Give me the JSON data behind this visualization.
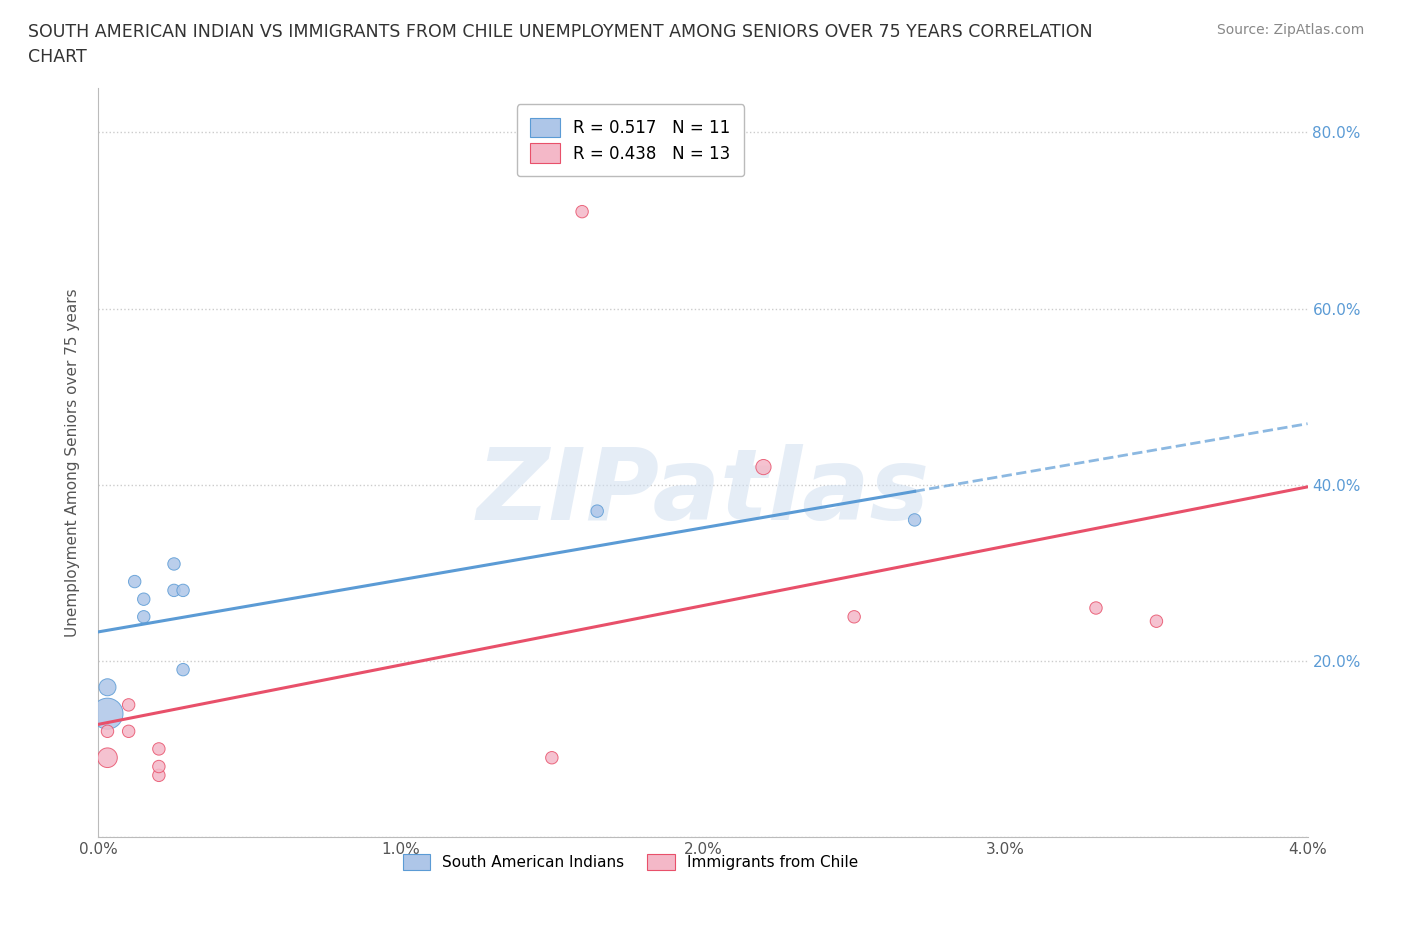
{
  "title_line1": "SOUTH AMERICAN INDIAN VS IMMIGRANTS FROM CHILE UNEMPLOYMENT AMONG SENIORS OVER 75 YEARS CORRELATION",
  "title_line2": "CHART",
  "source": "Source: ZipAtlas.com",
  "ylabel": "Unemployment Among Seniors over 75 years",
  "xlim": [
    0.0,
    0.04
  ],
  "ylim": [
    0.0,
    0.85
  ],
  "xticks": [
    0.0,
    0.01,
    0.02,
    0.03,
    0.04
  ],
  "yticks": [
    0.0,
    0.2,
    0.4,
    0.6,
    0.8
  ],
  "xticklabels": [
    "0.0%",
    "1.0%",
    "2.0%",
    "3.0%",
    "4.0%"
  ],
  "yticklabels_right": [
    "",
    "20.0%",
    "40.0%",
    "60.0%",
    "80.0%"
  ],
  "legend_entries": [
    {
      "label": "R = 0.517   N = 11",
      "color": "#aec6e8",
      "edge": "#5b9bd5"
    },
    {
      "label": "R = 0.438   N = 13",
      "color": "#f4b8c8",
      "edge": "#e8506a"
    }
  ],
  "series1_name": "South American Indians",
  "series1_color": "#aec6e8",
  "series1_line_color": "#5b9bd5",
  "series1_x": [
    0.0003,
    0.0003,
    0.0012,
    0.0015,
    0.0015,
    0.0025,
    0.0025,
    0.0028,
    0.0028,
    0.0165,
    0.027
  ],
  "series1_y": [
    0.14,
    0.17,
    0.29,
    0.25,
    0.27,
    0.28,
    0.31,
    0.28,
    0.19,
    0.37,
    0.36
  ],
  "series1_sizes": [
    500,
    150,
    80,
    80,
    80,
    80,
    80,
    80,
    80,
    80,
    80
  ],
  "series2_name": "Immigrants from Chile",
  "series2_color": "#f4b8c8",
  "series2_line_color": "#e8506a",
  "series2_x": [
    0.0003,
    0.0003,
    0.001,
    0.001,
    0.002,
    0.002,
    0.002,
    0.015,
    0.016,
    0.022,
    0.025,
    0.033,
    0.035
  ],
  "series2_y": [
    0.09,
    0.12,
    0.15,
    0.12,
    0.07,
    0.08,
    0.1,
    0.09,
    0.71,
    0.42,
    0.25,
    0.26,
    0.245
  ],
  "series2_sizes": [
    200,
    80,
    80,
    80,
    80,
    80,
    80,
    80,
    80,
    120,
    80,
    80,
    80
  ],
  "background_color": "#ffffff",
  "grid_color": "#cccccc",
  "watermark_text": "ZIPatlas",
  "trend_x_end_solid_pink": 0.04,
  "trend_x_end_solid_blue": 0.027,
  "trend_x_end_dash_blue": 0.04
}
